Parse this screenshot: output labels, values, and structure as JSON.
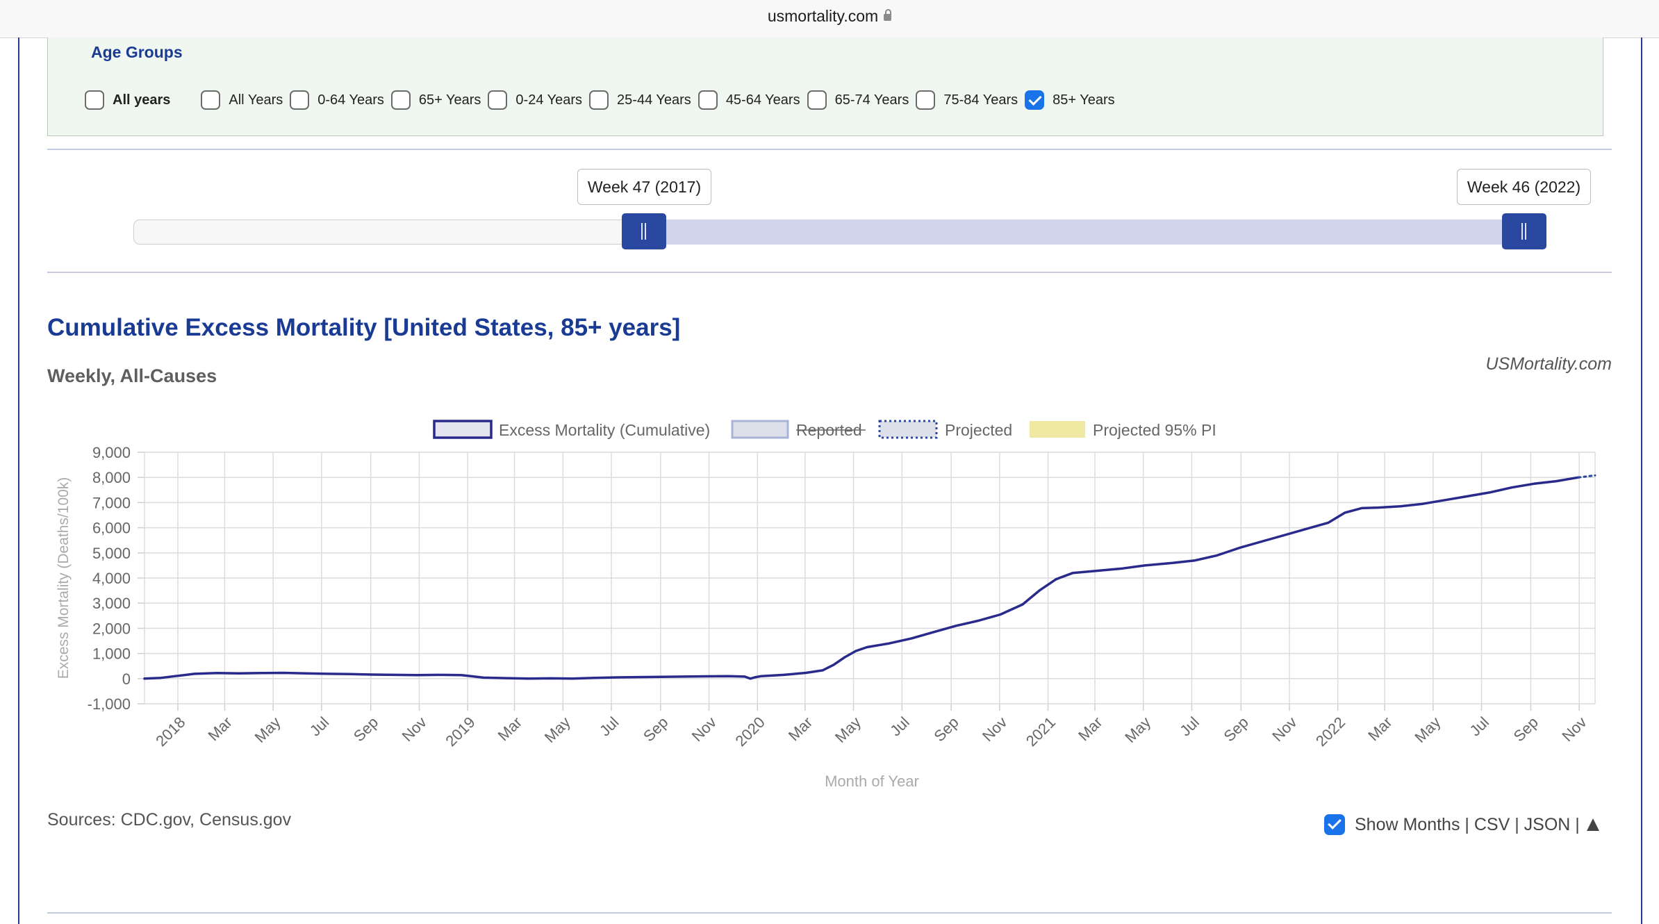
{
  "browser": {
    "url": "usmortality.com"
  },
  "age_groups": {
    "title": "Age Groups",
    "options": [
      {
        "label": "All years",
        "checked": false,
        "bold": true
      },
      {
        "label": "All Years",
        "checked": false
      },
      {
        "label": "0-64 Years",
        "checked": false
      },
      {
        "label": "65+ Years",
        "checked": false
      },
      {
        "label": "0-24 Years",
        "checked": false
      },
      {
        "label": "25-44 Years",
        "checked": false
      },
      {
        "label": "45-64 Years",
        "checked": false
      },
      {
        "label": "65-74 Years",
        "checked": false
      },
      {
        "label": "75-84 Years",
        "checked": false
      },
      {
        "label": "85+ Years",
        "checked": true
      }
    ]
  },
  "range": {
    "start_label": "Week 47 (2017)",
    "end_label": "Week 46 (2022)"
  },
  "chart_header": {
    "title": "Cumulative Excess Mortality [United States, 85+ years]",
    "subtitle": "Weekly, All-Causes",
    "brand": "USMortality.com"
  },
  "chart_data": {
    "type": "line",
    "title": "Cumulative Excess Mortality [United States, 85+ years]",
    "subtitle": "Weekly, All-Causes",
    "xlabel": "Month of Year",
    "ylabel": "Excess Mortality (Deaths/100k)",
    "ylim": [
      -1000,
      9000
    ],
    "yticks": [
      -1000,
      0,
      1000,
      2000,
      3000,
      4000,
      5000,
      6000,
      7000,
      8000,
      9000
    ],
    "ytick_labels": [
      "-1,000",
      "0",
      "1,000",
      "2,000",
      "3,000",
      "4,000",
      "5,000",
      "6,000",
      "7,000",
      "8,000",
      "9,000"
    ],
    "xlim": [
      "2017-11-20",
      "2022-11-21"
    ],
    "xtick_labels": [
      "2018",
      "Mar",
      "May",
      "Jul",
      "Sep",
      "Nov",
      "2019",
      "Mar",
      "May",
      "Jul",
      "Sep",
      "Nov",
      "2020",
      "Mar",
      "May",
      "Jul",
      "Sep",
      "Nov",
      "2021",
      "Mar",
      "May",
      "Jul",
      "Sep",
      "Nov",
      "2022",
      "Mar",
      "May",
      "Jul",
      "Sep",
      "Nov"
    ],
    "xtick_dates": [
      "2018-01-01",
      "2018-03-01",
      "2018-05-01",
      "2018-07-01",
      "2018-09-01",
      "2018-11-01",
      "2019-01-01",
      "2019-03-01",
      "2019-05-01",
      "2019-07-01",
      "2019-09-01",
      "2019-11-01",
      "2020-01-01",
      "2020-03-01",
      "2020-05-01",
      "2020-07-01",
      "2020-09-01",
      "2020-11-01",
      "2021-01-01",
      "2021-03-01",
      "2021-05-01",
      "2021-07-01",
      "2021-09-01",
      "2021-11-01",
      "2022-01-01",
      "2022-03-01",
      "2022-05-01",
      "2022-07-01",
      "2022-09-01",
      "2022-11-01"
    ],
    "grid": true,
    "legend_position": "top",
    "legend": [
      {
        "label": "Excess Mortality (Cumulative)",
        "style": "outline",
        "color": "#2a2a8c",
        "fill": "#e3e4ef"
      },
      {
        "label": "Reported",
        "style": "struck",
        "color": "#a9b4d4",
        "fill": "#dde0ea"
      },
      {
        "label": "Projected",
        "style": "dotted",
        "color": "#2a4aa0",
        "fill": "#dde0ea"
      },
      {
        "label": "Projected 95% PI",
        "style": "fill",
        "color": "#f0e9a4",
        "fill": "#f0e9a4"
      }
    ],
    "series": [
      {
        "name": "Excess Mortality (Cumulative)",
        "color": "#2a2a8c",
        "x": [
          "2017-11-20",
          "2017-12-11",
          "2018-01-01",
          "2018-01-22",
          "2018-02-19",
          "2018-03-19",
          "2018-04-16",
          "2018-05-14",
          "2018-06-11",
          "2018-07-09",
          "2018-08-06",
          "2018-09-03",
          "2018-10-01",
          "2018-10-29",
          "2018-11-26",
          "2018-12-24",
          "2019-01-07",
          "2019-01-21",
          "2019-02-18",
          "2019-03-18",
          "2019-04-15",
          "2019-05-13",
          "2019-06-10",
          "2019-07-08",
          "2019-08-05",
          "2019-09-02",
          "2019-09-30",
          "2019-10-28",
          "2019-11-25",
          "2019-12-16",
          "2019-12-23",
          "2019-12-30",
          "2020-01-06",
          "2020-02-03",
          "2020-03-02",
          "2020-03-23",
          "2020-04-06",
          "2020-04-20",
          "2020-05-04",
          "2020-05-18",
          "2020-06-15",
          "2020-07-13",
          "2020-08-10",
          "2020-09-07",
          "2020-10-05",
          "2020-11-02",
          "2020-11-30",
          "2020-12-21",
          "2021-01-11",
          "2021-02-01",
          "2021-03-01",
          "2021-04-05",
          "2021-05-03",
          "2021-06-07",
          "2021-07-05",
          "2021-08-02",
          "2021-08-30",
          "2021-09-27",
          "2021-10-25",
          "2021-11-22",
          "2021-12-20",
          "2022-01-10",
          "2022-01-31",
          "2022-02-21",
          "2022-03-21",
          "2022-04-18",
          "2022-05-16",
          "2022-06-13",
          "2022-07-11",
          "2022-08-08",
          "2022-09-05",
          "2022-10-03",
          "2022-10-31"
        ],
        "values": [
          0,
          30,
          110,
          190,
          220,
          210,
          220,
          230,
          210,
          190,
          180,
          160,
          150,
          140,
          150,
          140,
          90,
          40,
          20,
          0,
          10,
          0,
          30,
          50,
          60,
          70,
          80,
          90,
          100,
          80,
          0,
          60,
          100,
          150,
          230,
          330,
          550,
          850,
          1100,
          1250,
          1400,
          1600,
          1850,
          2100,
          2300,
          2550,
          2950,
          3500,
          3950,
          4200,
          4280,
          4380,
          4500,
          4600,
          4700,
          4900,
          5200,
          5450,
          5700,
          5950,
          6200,
          6600,
          6780,
          6800,
          6850,
          6950,
          7100,
          7250,
          7400,
          7600,
          7750,
          7850,
          8000
        ]
      },
      {
        "name": "Projected",
        "color": "#2a4aa0",
        "style": "dotted",
        "x": [
          "2022-10-31",
          "2022-11-21"
        ],
        "values": [
          8000,
          8080
        ]
      }
    ]
  },
  "footer": {
    "sources": "Sources: CDC.gov, Census.gov",
    "show_months_label": "Show Months",
    "links": [
      "CSV",
      "JSON"
    ]
  }
}
